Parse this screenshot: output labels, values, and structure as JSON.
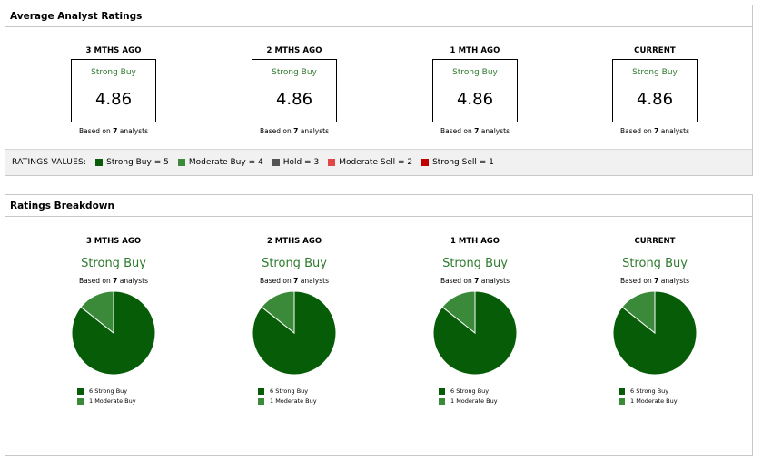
{
  "avg_panel": {
    "title": "Average Analyst Ratings",
    "periods": [
      {
        "label": "3 MTHS AGO",
        "rating_label": "Strong Buy",
        "value": "4.86",
        "based_prefix": "Based on ",
        "analysts": "7",
        "based_suffix": " analysts"
      },
      {
        "label": "2 MTHS AGO",
        "rating_label": "Strong Buy",
        "value": "4.86",
        "based_prefix": "Based on ",
        "analysts": "7",
        "based_suffix": " analysts"
      },
      {
        "label": "1 MTH AGO",
        "rating_label": "Strong Buy",
        "value": "4.86",
        "based_prefix": "Based on ",
        "analysts": "7",
        "based_suffix": " analysts"
      },
      {
        "label": "CURRENT",
        "rating_label": "Strong Buy",
        "value": "4.86",
        "based_prefix": "Based on ",
        "analysts": "7",
        "based_suffix": " analysts"
      }
    ],
    "legend": {
      "title": "RATINGS VALUES:",
      "items": [
        {
          "label": "Strong Buy = 5",
          "color": "#0a5c0a"
        },
        {
          "label": "Moderate Buy = 4",
          "color": "#3a8a3a"
        },
        {
          "label": "Hold = 3",
          "color": "#555555"
        },
        {
          "label": "Moderate Sell = 2",
          "color": "#e04848"
        },
        {
          "label": "Strong Sell = 1",
          "color": "#c00000"
        }
      ]
    }
  },
  "breakdown_panel": {
    "title": "Ratings Breakdown",
    "periods": [
      {
        "label": "3 MTHS AGO",
        "rating_label": "Strong Buy",
        "based_prefix": "Based on ",
        "analysts": "7",
        "based_suffix": " analysts",
        "slices": [
          {
            "label": "6 Strong Buy",
            "value": 6,
            "color": "#075c07"
          },
          {
            "label": "1 Moderate Buy",
            "value": 1,
            "color": "#3a8a3a"
          }
        ]
      },
      {
        "label": "2 MTHS AGO",
        "rating_label": "Strong Buy",
        "based_prefix": "Based on ",
        "analysts": "7",
        "based_suffix": " analysts",
        "slices": [
          {
            "label": "6 Strong Buy",
            "value": 6,
            "color": "#075c07"
          },
          {
            "label": "1 Moderate Buy",
            "value": 1,
            "color": "#3a8a3a"
          }
        ]
      },
      {
        "label": "1 MTH AGO",
        "rating_label": "Strong Buy",
        "based_prefix": "Based on ",
        "analysts": "7",
        "based_suffix": " analysts",
        "slices": [
          {
            "label": "6 Strong Buy",
            "value": 6,
            "color": "#075c07"
          },
          {
            "label": "1 Moderate Buy",
            "value": 1,
            "color": "#3a8a3a"
          }
        ]
      },
      {
        "label": "CURRENT",
        "rating_label": "Strong Buy",
        "based_prefix": "Based on ",
        "analysts": "7",
        "based_suffix": " analysts",
        "slices": [
          {
            "label": "6 Strong Buy",
            "value": 6,
            "color": "#075c07"
          },
          {
            "label": "1 Moderate Buy",
            "value": 1,
            "color": "#3a8a3a"
          }
        ]
      }
    ]
  }
}
